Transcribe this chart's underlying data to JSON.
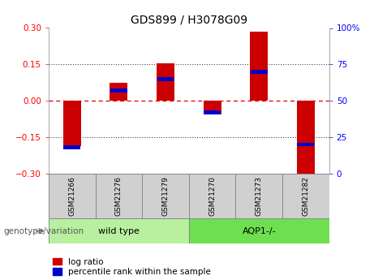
{
  "title": "GDS899 / H3078G09",
  "samples": [
    "GSM21266",
    "GSM21276",
    "GSM21279",
    "GSM21270",
    "GSM21273",
    "GSM21282"
  ],
  "log_ratios": [
    -0.185,
    0.075,
    0.155,
    -0.055,
    0.285,
    -0.32
  ],
  "percentile_ranks": [
    18,
    57,
    65,
    42,
    70,
    20
  ],
  "groups": [
    {
      "label": "wild type",
      "samples": [
        0,
        1,
        2
      ],
      "color": "#b8f0a0"
    },
    {
      "label": "AQP1-/-",
      "samples": [
        3,
        4,
        5
      ],
      "color": "#6ee050"
    }
  ],
  "bar_color_red": "#cc0000",
  "bar_color_blue": "#0000cc",
  "ylim_left": [
    -0.3,
    0.3
  ],
  "ylim_right": [
    0,
    100
  ],
  "yticks_left": [
    -0.3,
    -0.15,
    0,
    0.15,
    0.3
  ],
  "yticks_right": [
    0,
    25,
    50,
    75,
    100
  ],
  "hline_color": "#dd0000",
  "dotted_line_color": "#444444",
  "background_color": "#ffffff",
  "plot_bg_color": "#ffffff",
  "bar_width": 0.38,
  "genotype_label": "genotype/variation",
  "legend_log_ratio": "log ratio",
  "legend_percentile": "percentile rank within the sample",
  "sample_box_color": "#d0d0d0",
  "sample_box_edge": "#888888"
}
